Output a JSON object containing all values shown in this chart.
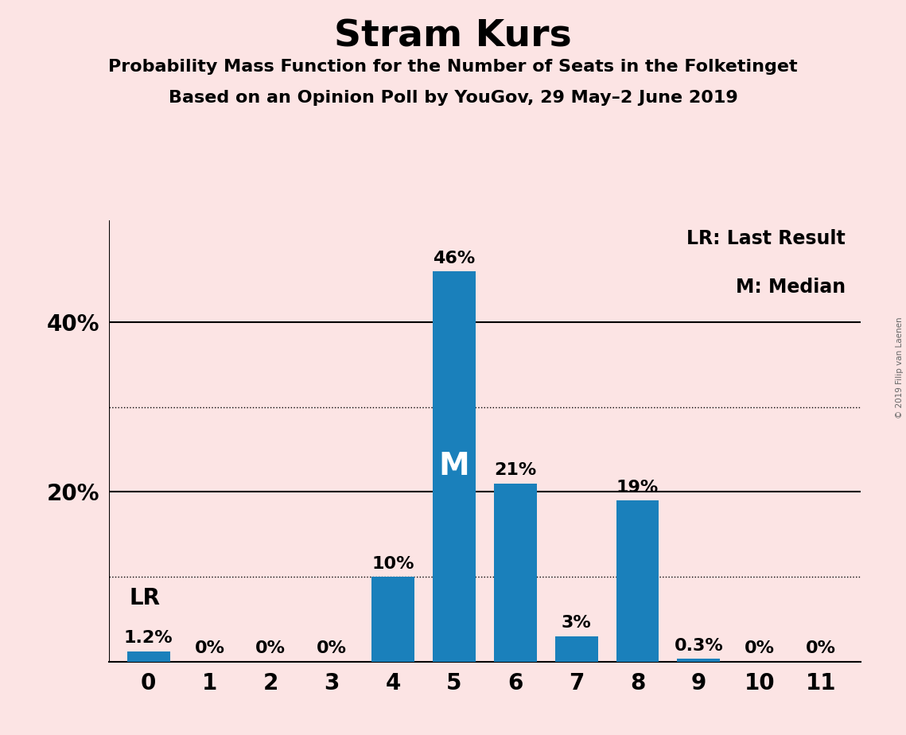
{
  "title": "Stram Kurs",
  "subtitle1": "Probability Mass Function for the Number of Seats in the Folketinget",
  "subtitle2": "Based on an Opinion Poll by YouGov, 29 May–2 June 2019",
  "watermark": "© 2019 Filip van Laenen",
  "categories": [
    0,
    1,
    2,
    3,
    4,
    5,
    6,
    7,
    8,
    9,
    10,
    11
  ],
  "values": [
    1.2,
    0,
    0,
    0,
    10,
    46,
    21,
    3,
    19,
    0.3,
    0,
    0
  ],
  "bar_color": "#1a80bb",
  "background_color": "#fce4e4",
  "bar_labels": [
    "1.2%",
    "0%",
    "0%",
    "0%",
    "10%",
    "46%",
    "21%",
    "3%",
    "19%",
    "0.3%",
    "0%",
    "0%"
  ],
  "ylabel_major": [
    20,
    40
  ],
  "ylabel_major_labels": [
    "20%",
    "40%"
  ],
  "solid_gridlines": [
    20,
    40
  ],
  "dotted_gridlines": [
    10,
    30
  ],
  "lr_bar": 0,
  "median_bar": 5,
  "legend_text1": "LR: Last Result",
  "legend_text2": "M: Median",
  "ylim": [
    0,
    52
  ],
  "xlim_left": -0.65,
  "xlim_right": 11.65
}
